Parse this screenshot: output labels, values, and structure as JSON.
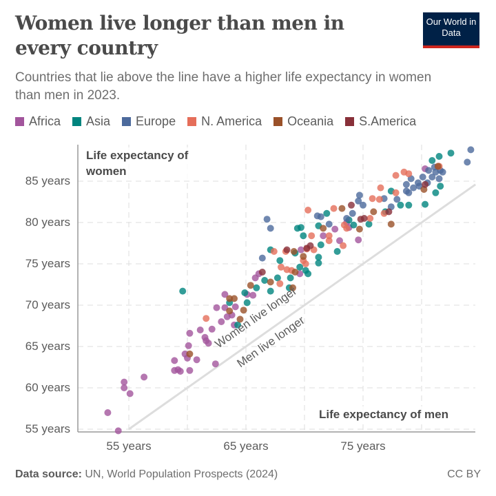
{
  "header": {
    "title": "Women live longer than men in every country",
    "subtitle": "Countries that lie above the line have a higher life expectancy in women than men in 2023.",
    "logo": "Our World in Data"
  },
  "footer": {
    "source_label": "Data source:",
    "source_text": "UN, World Population Prospects (2024)",
    "license": "CC BY"
  },
  "chart_data": {
    "type": "scatter",
    "title": "Women live longer than men in every country",
    "xlabel": "Life expectancy of men",
    "ylabel": "Life expectancy of women",
    "xlim": [
      50.6,
      84.6
    ],
    "ylim": [
      55,
      89
    ],
    "xticks": [
      {
        "value": 55,
        "label": "55 years"
      },
      {
        "value": 65,
        "label": "65 years"
      },
      {
        "value": 75,
        "label": "75 years"
      }
    ],
    "yticks": [
      {
        "value": 55,
        "label": "55 years"
      },
      {
        "value": 60,
        "label": "60 years"
      },
      {
        "value": 65,
        "label": "65 years"
      },
      {
        "value": 70,
        "label": "70 years"
      },
      {
        "value": 75,
        "label": "75 years"
      },
      {
        "value": 80,
        "label": "80 years"
      },
      {
        "value": 85,
        "label": "85 years"
      }
    ],
    "grid": true,
    "legend_position": "top",
    "reference_line": {
      "equation": "y = x",
      "label_above": "Women live longer",
      "label_below": "Men live longer",
      "color": "#dddddd"
    },
    "series": [
      {
        "name": "Africa",
        "color": "#a2559c",
        "points": [
          [
            53.2,
            57.0
          ],
          [
            54.1,
            54.8
          ],
          [
            54.6,
            60.7
          ],
          [
            54.6,
            60.0
          ],
          [
            55.1,
            59.3
          ],
          [
            56.3,
            61.3
          ],
          [
            58.9,
            63.3
          ],
          [
            58.9,
            62.1
          ],
          [
            59.2,
            62.2
          ],
          [
            59.4,
            62.0
          ],
          [
            60.2,
            62.1
          ],
          [
            59.8,
            64.1
          ],
          [
            60.0,
            63.6
          ],
          [
            60.8,
            63.4
          ],
          [
            62.4,
            62.9
          ],
          [
            60.1,
            65.1
          ],
          [
            60.2,
            66.6
          ],
          [
            61.1,
            67.0
          ],
          [
            61.5,
            66.1
          ],
          [
            61.6,
            65.7
          ],
          [
            61.8,
            65.4
          ],
          [
            62.1,
            67.1
          ],
          [
            62.9,
            68.0
          ],
          [
            62.5,
            69.7
          ],
          [
            63.2,
            69.7
          ],
          [
            63.4,
            68.6
          ],
          [
            63.8,
            68.8
          ],
          [
            64.0,
            67.6
          ],
          [
            63.2,
            71.3
          ],
          [
            64.1,
            69.8
          ],
          [
            65.1,
            71.3
          ],
          [
            65.6,
            71.2
          ],
          [
            65.8,
            73.3
          ],
          [
            73.6,
            80.0
          ],
          [
            74.6,
            77.9
          ],
          [
            72.6,
            79.2
          ],
          [
            73.0,
            77.8
          ],
          [
            71.6,
            78.4
          ],
          [
            69.7,
            76.7
          ],
          [
            66.1,
            73.8
          ],
          [
            69.6,
            73.8
          ],
          [
            73.8,
            79.4
          ],
          [
            80.3,
            86.5
          ]
        ]
      },
      {
        "name": "Asia",
        "color": "#00847e",
        "points": [
          [
            59.6,
            71.7
          ],
          [
            63.6,
            70.3
          ],
          [
            65.1,
            70.3
          ],
          [
            64.3,
            67.6
          ],
          [
            65.9,
            72.1
          ],
          [
            64.9,
            71.5
          ],
          [
            82.5,
            88.4
          ],
          [
            81.5,
            88.0
          ],
          [
            80.9,
            87.5
          ],
          [
            81.6,
            84.4
          ],
          [
            81.2,
            83.6
          ],
          [
            80.3,
            82.2
          ],
          [
            78.9,
            82.1
          ],
          [
            78.2,
            82.1
          ],
          [
            77.4,
            83.8
          ],
          [
            76.9,
            81.3
          ],
          [
            75.5,
            79.8
          ],
          [
            74.2,
            79.7
          ],
          [
            73.8,
            80.3
          ],
          [
            71.9,
            81.1
          ],
          [
            71.2,
            79.6
          ],
          [
            69.4,
            79.3
          ],
          [
            69.7,
            79.4
          ],
          [
            69.9,
            78.4
          ],
          [
            72.8,
            76.5
          ],
          [
            71.4,
            77.3
          ],
          [
            69.2,
            76.3
          ],
          [
            67.1,
            76.7
          ],
          [
            67.9,
            75.4
          ],
          [
            71.2,
            75.8
          ],
          [
            71.2,
            75.1
          ],
          [
            70.1,
            74.2
          ],
          [
            70.3,
            73.8
          ],
          [
            68.8,
            73.3
          ],
          [
            67.7,
            73.3
          ],
          [
            66.6,
            73.0
          ],
          [
            68.7,
            72.1
          ],
          [
            67.1,
            71.7
          ],
          [
            69.6,
            74.6
          ]
        ]
      },
      {
        "name": "Europe",
        "color": "#4c6a9c",
        "points": [
          [
            84.2,
            88.8
          ],
          [
            83.9,
            87.3
          ],
          [
            66.8,
            80.4
          ],
          [
            67.1,
            79.3
          ],
          [
            66.4,
            75.7
          ],
          [
            71.1,
            80.8
          ],
          [
            71.4,
            80.7
          ],
          [
            72.1,
            79.8
          ],
          [
            74.7,
            83.3
          ],
          [
            74.6,
            82.6
          ],
          [
            75.0,
            82.1
          ],
          [
            74.1,
            81.1
          ],
          [
            73.6,
            80.5
          ],
          [
            76.8,
            82.9
          ],
          [
            77.4,
            81.9
          ],
          [
            77.9,
            82.8
          ],
          [
            78.7,
            84.6
          ],
          [
            79.1,
            85.3
          ],
          [
            78.9,
            83.6
          ],
          [
            79.3,
            84.2
          ],
          [
            79.7,
            84.8
          ],
          [
            80.1,
            85.5
          ],
          [
            80.6,
            86.3
          ],
          [
            80.9,
            85.5
          ],
          [
            81.2,
            86.1
          ],
          [
            81.6,
            86.3
          ],
          [
            81.5,
            85.3
          ],
          [
            80.5,
            84.8
          ],
          [
            81.1,
            86.7
          ],
          [
            81.8,
            86.1
          ],
          [
            78.7,
            83.8
          ],
          [
            79.8,
            84.4
          ]
        ]
      },
      {
        "name": "N. America",
        "color": "#e56e5a",
        "points": [
          [
            61.6,
            68.4
          ],
          [
            77.8,
            85.7
          ],
          [
            78.5,
            86.1
          ],
          [
            78.9,
            85.9
          ],
          [
            76.5,
            84.2
          ],
          [
            75.8,
            82.9
          ],
          [
            76.4,
            82.8
          ],
          [
            77.8,
            83.6
          ],
          [
            76.8,
            81.1
          ],
          [
            70.3,
            81.5
          ],
          [
            72.5,
            81.7
          ],
          [
            75.6,
            80.5
          ],
          [
            73.4,
            79.7
          ],
          [
            73.6,
            79.3
          ],
          [
            72.1,
            78.4
          ],
          [
            72.1,
            77.8
          ],
          [
            70.6,
            78.4
          ],
          [
            70.8,
            76.7
          ],
          [
            70.2,
            76.8
          ],
          [
            68.4,
            76.5
          ],
          [
            67.4,
            76.5
          ],
          [
            69.9,
            75.4
          ],
          [
            70.1,
            75.0
          ],
          [
            68.0,
            74.6
          ],
          [
            68.5,
            74.3
          ],
          [
            68.9,
            74.2
          ],
          [
            67.9,
            72.6
          ],
          [
            73.3,
            77.2
          ],
          [
            81.5,
            86.8
          ]
        ]
      },
      {
        "name": "Oceania",
        "color": "#9a5129",
        "points": [
          [
            60.2,
            64.1
          ],
          [
            63.6,
            70.8
          ],
          [
            64.0,
            70.8
          ],
          [
            63.6,
            69.3
          ],
          [
            64.8,
            69.4
          ],
          [
            64.5,
            68.3
          ],
          [
            65.4,
            72.4
          ],
          [
            73.2,
            81.7
          ],
          [
            75.9,
            81.3
          ],
          [
            77.4,
            79.8
          ],
          [
            80.2,
            84.0
          ],
          [
            74.7,
            79.2
          ],
          [
            71.6,
            79.3
          ],
          [
            69.1,
            76.5
          ],
          [
            69.9,
            75.9
          ],
          [
            69.2,
            74.0
          ],
          [
            69.0,
            72.1
          ],
          [
            67.1,
            72.8
          ],
          [
            81.4,
            86.8
          ]
        ]
      },
      {
        "name": "S.America",
        "color": "#883039",
        "points": [
          [
            74.0,
            82.1
          ],
          [
            74.8,
            80.4
          ],
          [
            75.1,
            80.5
          ],
          [
            70.5,
            77.2
          ],
          [
            70.2,
            76.9
          ],
          [
            68.5,
            76.7
          ],
          [
            77.2,
            81.3
          ],
          [
            80.3,
            84.6
          ],
          [
            66.4,
            74.0
          ]
        ]
      }
    ]
  }
}
